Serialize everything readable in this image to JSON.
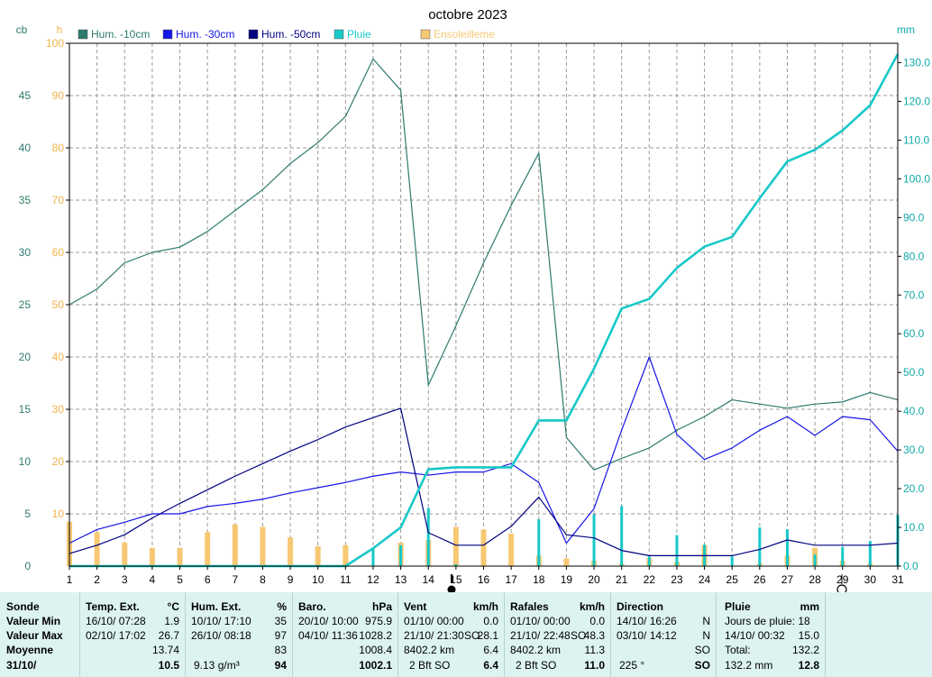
{
  "colors": {
    "hum10": "#2d7a6e",
    "hum30": "#1515e8",
    "hum50": "#000080",
    "rain": "#18c8c8",
    "sun": "#f7c873",
    "cb_axis": "#2d7a6e",
    "h_axis": "#f2b349",
    "mm_axis": "#12a9a9",
    "panel_bg": "#dcf3f1"
  },
  "chart_data": {
    "type": "line",
    "title": "octobre 2023",
    "x": [
      1,
      2,
      3,
      4,
      5,
      6,
      7,
      8,
      9,
      10,
      11,
      12,
      13,
      14,
      15,
      16,
      17,
      18,
      19,
      20,
      21,
      22,
      23,
      24,
      25,
      26,
      27,
      28,
      29,
      30,
      31
    ],
    "x_ticks": [
      "1",
      "2",
      "3",
      "4",
      "5",
      "6",
      "7",
      "8",
      "9",
      "10",
      "11",
      "12",
      "13",
      "14",
      "15",
      "16",
      "17",
      "18",
      "19",
      "20",
      "21",
      "22",
      "23",
      "24",
      "25",
      "26",
      "27",
      "28",
      "29",
      "30",
      "31"
    ],
    "xlim": [
      1,
      31
    ],
    "grid": true,
    "legend_position": "top",
    "axes": {
      "cb": {
        "label": "cb",
        "lim": [
          0,
          50
        ],
        "ticks": [
          "0",
          "5",
          "10",
          "15",
          "20",
          "25",
          "30",
          "35",
          "40",
          "45"
        ]
      },
      "h": {
        "label": "h",
        "lim": [
          0,
          100
        ],
        "ticks": [
          "10",
          "20",
          "30",
          "40",
          "50",
          "60",
          "70",
          "80",
          "90",
          "100"
        ]
      },
      "mm": {
        "label": "mm",
        "lim": [
          0,
          135
        ],
        "ticks": [
          "0.0",
          "10.0",
          "20.0",
          "30.0",
          "40.0",
          "50.0",
          "60.0",
          "70.0",
          "80.0",
          "90.0",
          "100.0",
          "110.0",
          "120.0",
          "130.0"
        ]
      }
    },
    "series": [
      {
        "name": "Hum. -10cm",
        "axis": "cb",
        "style": "line",
        "color_key": "hum10",
        "values": [
          25,
          26.5,
          29,
          30,
          30.5,
          32,
          34,
          36,
          38.5,
          40.5,
          43,
          48.5,
          45.5,
          17.3,
          23,
          29,
          34.5,
          39.5,
          12.3,
          9.2,
          10.3,
          11.3,
          13,
          14.3,
          15.9,
          15.5,
          15.1,
          15.5,
          15.7,
          16.6,
          15.9
        ]
      },
      {
        "name": "Hum. -30cm",
        "axis": "cb",
        "style": "line",
        "color_key": "hum30",
        "values": [
          2.2,
          3.5,
          4.2,
          5,
          5,
          5.7,
          6,
          6.4,
          7,
          7.5,
          8,
          8.6,
          9,
          8.7,
          9,
          9,
          9.8,
          8,
          2.2,
          5.5,
          13,
          20,
          12.6,
          10.2,
          11.3,
          13,
          14.3,
          12.5,
          14.3,
          14,
          11
        ]
      },
      {
        "name": "Hum. -50cm",
        "axis": "cb",
        "style": "line",
        "color_key": "hum50",
        "values": [
          1.2,
          2,
          3,
          4.6,
          6,
          7.3,
          8.6,
          9.8,
          11,
          12.1,
          13.3,
          14.2,
          15.1,
          3.2,
          2,
          2,
          3.8,
          6.6,
          3,
          2.7,
          1.5,
          1,
          1,
          1,
          1,
          1.6,
          2.5,
          2,
          2,
          2,
          2.2
        ]
      },
      {
        "name": "Pluie",
        "axis": "mm",
        "style": "cumulative-line",
        "color_key": "rain",
        "values": [
          0,
          0,
          0,
          0,
          0,
          0,
          0,
          0,
          0,
          0,
          0,
          4.6,
          10,
          25,
          25.5,
          25.5,
          25.5,
          37.6,
          37.6,
          51,
          66.5,
          69,
          77,
          82.5,
          85,
          95,
          104.5,
          107.5,
          112.5,
          119,
          132.2
        ]
      },
      {
        "name": "Pluie",
        "axis": "mm",
        "style": "daily-bars",
        "color_key": "rain",
        "values": [
          0,
          0,
          0,
          0,
          0,
          0,
          0,
          0,
          0,
          0,
          0,
          4.6,
          5.4,
          15,
          0.5,
          0,
          0,
          12.1,
          0,
          13.4,
          15.5,
          2.5,
          8,
          5.5,
          2.5,
          10,
          9.5,
          3,
          5,
          6.5,
          13.2
        ]
      },
      {
        "name": "Ensoleilleme",
        "axis": "h",
        "style": "bars",
        "color_key": "sun",
        "values": [
          8.5,
          6.5,
          4.5,
          3.5,
          3.5,
          6.5,
          8,
          7.5,
          5.5,
          3.8,
          4,
          0,
          4.5,
          5,
          7.5,
          7,
          6.2,
          2,
          1.5,
          1,
          0.5,
          1.5,
          0.8,
          4,
          0,
          0.5,
          2,
          3.5,
          1,
          0.5,
          0
        ]
      }
    ]
  },
  "panel": {
    "sonde": {
      "title": "Sonde",
      "rows": [
        "Valeur Min",
        "Valeur Max",
        "Moyenne"
      ],
      "date": "31/10/"
    },
    "temp": {
      "title": "Temp. Ext.",
      "unit": "°C",
      "min_time": "16/10/  07:28",
      "min_val": "1.9",
      "max_time": "02/10/  17:02",
      "max_val": "26.7",
      "avg": "13.74",
      "now": "10.5"
    },
    "hum": {
      "title": "Hum. Ext.",
      "unit": "%",
      "min_time": "10/10/  17:10",
      "min_val": "35",
      "max_time": "26/10/  08:18",
      "max_val": "97",
      "avg": "83",
      "extra": "9.13 g/m³",
      "now": "94"
    },
    "baro": {
      "title": "Baro.",
      "unit": "hPa",
      "min_time": "20/10/  10:00",
      "min_val": "975.9",
      "max_time": "04/10/  11:36",
      "max_val": "1028.2",
      "avg": "1008.4",
      "now": "1002.1"
    },
    "vent": {
      "title": "Vent",
      "unit": "km/h",
      "min_time": "01/10/  00:00",
      "min_val": "0.0",
      "max_time": "21/10/  21:30",
      "max_dir": "SO",
      "max_val": "28.1",
      "dist": "8402.2 km",
      "avg": "6.4",
      "bft": "2 Bft SO",
      "now": "6.4"
    },
    "rafales": {
      "title": "Rafales",
      "unit": "km/h",
      "min_time": "01/10/  00:00",
      "min_val": "0.0",
      "max_time": "21/10/  22:48",
      "max_dir": "SO",
      "max_val": "48.3",
      "dist": "8402.2 km",
      "avg": "11.3",
      "bft": "2 Bft SO",
      "now": "11.0"
    },
    "direction": {
      "title": "Direction",
      "min_time": "14/10/  16:26",
      "min_val": "N",
      "max_time": "03/10/  14:12",
      "max_val": "N",
      "avg": "SO",
      "deg": "225 °",
      "now": "SO"
    },
    "pluie": {
      "title": "Pluie",
      "unit": "mm",
      "days_label": "Jours de pluie: 18",
      "max_time": "14/10/  00:32",
      "max_val": "15.0",
      "total_label": "Total:",
      "total_val": "132.2",
      "month": "132.2 mm",
      "now": "12.8"
    }
  }
}
